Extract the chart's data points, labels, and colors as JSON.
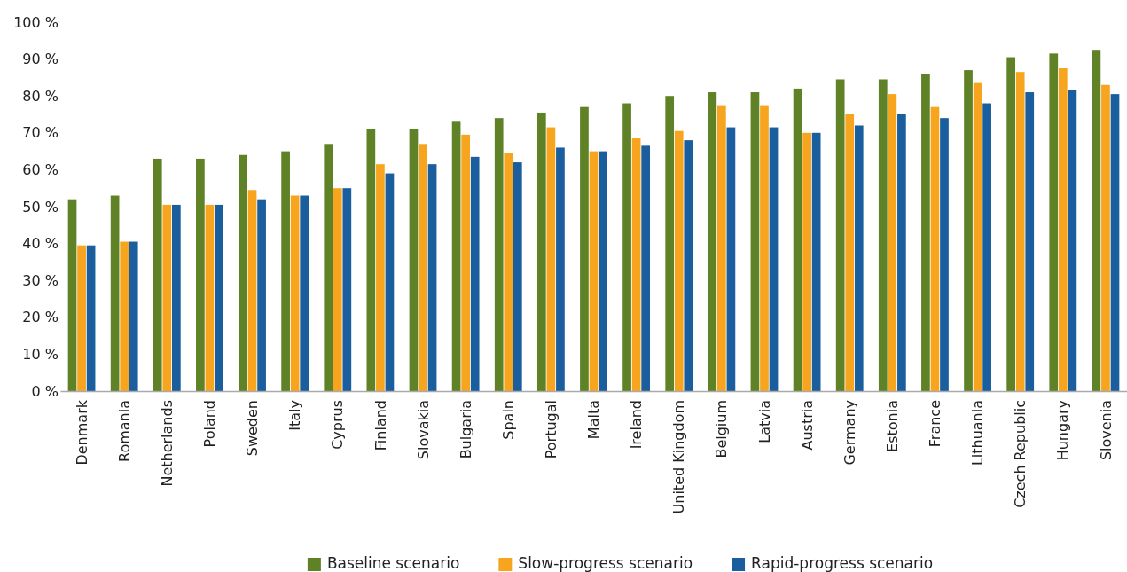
{
  "chart_data": {
    "type": "bar",
    "categories": [
      "Denmark",
      "Romania",
      "Netherlands",
      "Poland",
      "Sweden",
      "Italy",
      "Cyprus",
      "Finland",
      "Slovakia",
      "Bulgaria",
      "Spain",
      "Portugal",
      "Malta",
      "Ireland",
      "United Kingdom",
      "Belgium",
      "Latvia",
      "Austria",
      "Germany",
      "Estonia",
      "France",
      "Lithuania",
      "Czech Republic",
      "Hungary",
      "Slovenia"
    ],
    "series": [
      {
        "name": "Baseline scenario",
        "color": "#5f8226",
        "values": [
          52,
          53,
          63,
          63,
          64,
          65,
          67,
          71,
          71,
          73,
          74,
          75.5,
          77,
          78,
          80,
          81,
          81,
          82,
          84.5,
          84.5,
          86,
          87,
          90.5,
          91.5,
          92.5
        ]
      },
      {
        "name": "Slow-progress scenario",
        "color": "#f7a51e",
        "values": [
          39.5,
          40.5,
          50.5,
          50.5,
          54.5,
          53,
          55,
          61.5,
          67,
          69.5,
          64.5,
          71.5,
          65,
          68.5,
          70.5,
          77.5,
          77.5,
          70,
          75,
          80.5,
          77,
          83.5,
          86.5,
          87.5,
          83
        ]
      },
      {
        "name": "Rapid-progress scenario",
        "color": "#1a5e9e",
        "values": [
          39.5,
          40.5,
          50.5,
          50.5,
          52,
          53,
          55,
          59,
          61.5,
          63.5,
          62,
          66,
          65,
          66.5,
          68,
          71.5,
          71.5,
          70,
          72,
          75,
          74,
          78,
          81,
          81.5,
          80.5
        ]
      }
    ],
    "ylim": [
      0,
      100
    ],
    "yticks": [
      {
        "value": 0,
        "label": "0 %"
      },
      {
        "value": 10,
        "label": "10 %"
      },
      {
        "value": 20,
        "label": "20 %"
      },
      {
        "value": 30,
        "label": "30 %"
      },
      {
        "value": 40,
        "label": "40 %"
      },
      {
        "value": 50,
        "label": "50 %"
      },
      {
        "value": 60,
        "label": "60 %"
      },
      {
        "value": 70,
        "label": "70 %"
      },
      {
        "value": 80,
        "label": "80 %"
      },
      {
        "value": 90,
        "label": "90 %"
      },
      {
        "value": 100,
        "label": "100 %"
      }
    ],
    "grid": false,
    "legend": "bottom"
  }
}
